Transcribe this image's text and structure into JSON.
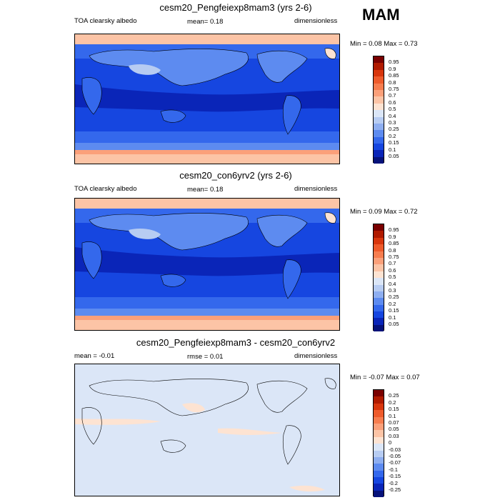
{
  "season": "MAM",
  "panels": [
    {
      "title": "cesm20_Pengfeiexp8mam3 (yrs 2-6)",
      "left_label": "TOA clearsky albedo",
      "center_label": "mean=   0.18",
      "right_label": "dimensionless",
      "minmax": "Min =   0.08 Max =   0.73",
      "palette": "abs"
    },
    {
      "title": "cesm20_con6yrv2 (yrs 2-6)",
      "left_label": "TOA clearsky albedo",
      "center_label": "mean=   0.18",
      "right_label": "dimensionless",
      "minmax": "Min =   0.09 Max =   0.72",
      "palette": "abs"
    },
    {
      "title": "cesm20_Pengfeiexp8mam3 - cesm20_con6yrv2",
      "left_label": "mean =  -0.01",
      "center_label": "rmse =   0.01",
      "right_label": "dimensionless",
      "minmax": "Min =  -0.07 Max =   0.07",
      "palette": "diff"
    }
  ],
  "colorbars": {
    "abs": {
      "labels": [
        "0.95",
        "0.9",
        "0.85",
        "0.8",
        "0.75",
        "0.7",
        "0.6",
        "0.5",
        "0.4",
        "0.3",
        "0.25",
        "0.2",
        "0.15",
        "0.1",
        "0.05"
      ],
      "colors": [
        "#7a0000",
        "#b01a00",
        "#d8360d",
        "#ee5b2c",
        "#f77d4f",
        "#fba07a",
        "#fcc4a6",
        "#fde3d2",
        "#dbe6f7",
        "#b7ccf2",
        "#8eaef0",
        "#5d8bf0",
        "#3468ec",
        "#1646e0",
        "#0a25b8",
        "#06127a"
      ]
    },
    "diff": {
      "labels": [
        "0.25",
        "0.2",
        "0.15",
        "0.1",
        "0.07",
        "0.05",
        "0.03",
        "0",
        "-0.03",
        "-0.05",
        "-0.07",
        "-0.1",
        "-0.15",
        "-0.2",
        "-0.25"
      ],
      "colors": [
        "#7a0000",
        "#b01a00",
        "#d8360d",
        "#ee5b2c",
        "#f77d4f",
        "#fba07a",
        "#fcc4a6",
        "#fde3d2",
        "#dbe6f7",
        "#b7ccf2",
        "#8eaef0",
        "#5d8bf0",
        "#3468ec",
        "#1646e0",
        "#0a25b8",
        "#06127a"
      ]
    }
  },
  "chart_data": [
    {
      "type": "heatmap",
      "title": "cesm20_Pengfeiexp8mam3 (yrs 2-6)",
      "variable": "TOA clearsky albedo",
      "units": "dimensionless",
      "mean": 0.18,
      "min": 0.08,
      "max": 0.73,
      "levels": [
        0.05,
        0.1,
        0.15,
        0.2,
        0.25,
        0.3,
        0.4,
        0.5,
        0.6,
        0.7,
        0.75,
        0.8,
        0.85,
        0.9,
        0.95
      ]
    },
    {
      "type": "heatmap",
      "title": "cesm20_con6yrv2 (yrs 2-6)",
      "variable": "TOA clearsky albedo",
      "units": "dimensionless",
      "mean": 0.18,
      "min": 0.09,
      "max": 0.72,
      "levels": [
        0.05,
        0.1,
        0.15,
        0.2,
        0.25,
        0.3,
        0.4,
        0.5,
        0.6,
        0.7,
        0.75,
        0.8,
        0.85,
        0.9,
        0.95
      ]
    },
    {
      "type": "heatmap",
      "title": "cesm20_Pengfeiexp8mam3 - cesm20_con6yrv2",
      "units": "dimensionless",
      "mean": -0.01,
      "rmse": 0.01,
      "min": -0.07,
      "max": 0.07,
      "levels": [
        -0.25,
        -0.2,
        -0.15,
        -0.1,
        -0.07,
        -0.05,
        -0.03,
        0,
        0.03,
        0.05,
        0.07,
        0.1,
        0.15,
        0.2,
        0.25
      ]
    }
  ]
}
